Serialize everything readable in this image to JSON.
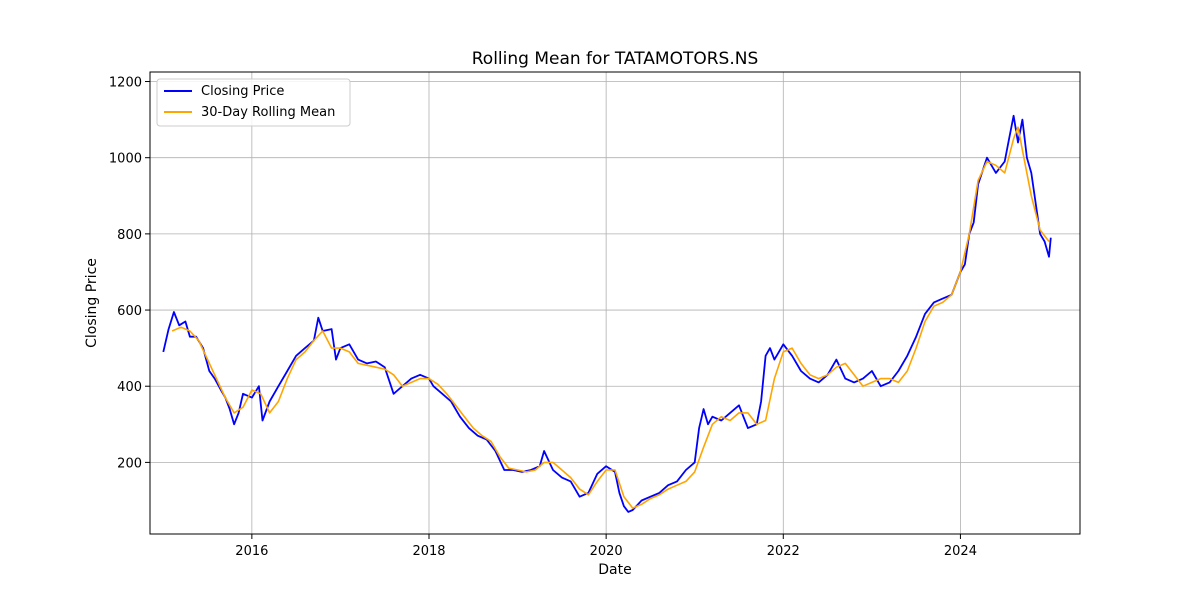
{
  "chart_data": {
    "type": "line",
    "title": "Rolling Mean for TATAMOTORS.NS",
    "xlabel": "Date",
    "ylabel": "Closing Price",
    "x_ticks": [
      "2016",
      "2018",
      "2020",
      "2022",
      "2024"
    ],
    "y_ticks": [
      200,
      400,
      600,
      800,
      1000,
      1200
    ],
    "xlim": [
      2014.85,
      2025.35
    ],
    "ylim": [
      12,
      1225
    ],
    "grid": true,
    "legend_position": "top-left",
    "series": [
      {
        "name": "Closing Price",
        "color": "#0000ff",
        "x": [
          2015.0,
          2015.06,
          2015.12,
          2015.18,
          2015.25,
          2015.3,
          2015.37,
          2015.45,
          2015.52,
          2015.58,
          2015.65,
          2015.7,
          2015.75,
          2015.8,
          2015.85,
          2015.9,
          2016.0,
          2016.08,
          2016.12,
          2016.2,
          2016.3,
          2016.4,
          2016.5,
          2016.6,
          2016.7,
          2016.75,
          2016.8,
          2016.9,
          2016.95,
          2017.0,
          2017.1,
          2017.2,
          2017.3,
          2017.4,
          2017.5,
          2017.6,
          2017.65,
          2017.7,
          2017.8,
          2017.9,
          2018.0,
          2018.05,
          2018.15,
          2018.25,
          2018.35,
          2018.45,
          2018.55,
          2018.65,
          2018.75,
          2018.85,
          2018.95,
          2019.05,
          2019.15,
          2019.25,
          2019.3,
          2019.4,
          2019.5,
          2019.6,
          2019.7,
          2019.8,
          2019.9,
          2020.0,
          2020.1,
          2020.15,
          2020.2,
          2020.25,
          2020.3,
          2020.4,
          2020.5,
          2020.6,
          2020.7,
          2020.8,
          2020.9,
          2021.0,
          2021.05,
          2021.1,
          2021.15,
          2021.2,
          2021.3,
          2021.4,
          2021.5,
          2021.55,
          2021.6,
          2021.7,
          2021.75,
          2021.8,
          2021.85,
          2021.9,
          2021.95,
          2022.0,
          2022.1,
          2022.2,
          2022.3,
          2022.4,
          2022.5,
          2022.6,
          2022.7,
          2022.8,
          2022.9,
          2023.0,
          2023.1,
          2023.2,
          2023.3,
          2023.4,
          2023.5,
          2023.6,
          2023.7,
          2023.8,
          2023.9,
          2024.0,
          2024.05,
          2024.1,
          2024.15,
          2024.2,
          2024.3,
          2024.4,
          2024.5,
          2024.55,
          2024.6,
          2024.65,
          2024.7,
          2024.75,
          2024.8,
          2024.85,
          2024.9,
          2024.95,
          2025.0,
          2025.02
        ],
        "y": [
          490,
          550,
          595,
          560,
          570,
          530,
          530,
          500,
          440,
          420,
          390,
          370,
          340,
          300,
          330,
          380,
          370,
          400,
          310,
          360,
          400,
          440,
          480,
          500,
          520,
          580,
          545,
          550,
          470,
          500,
          510,
          470,
          460,
          465,
          450,
          380,
          390,
          400,
          420,
          430,
          420,
          400,
          380,
          360,
          320,
          290,
          270,
          260,
          230,
          180,
          180,
          175,
          180,
          190,
          230,
          180,
          160,
          150,
          110,
          120,
          170,
          190,
          175,
          120,
          85,
          70,
          75,
          100,
          110,
          120,
          140,
          150,
          180,
          200,
          290,
          340,
          300,
          320,
          310,
          330,
          350,
          320,
          290,
          300,
          360,
          480,
          500,
          470,
          490,
          510,
          480,
          440,
          420,
          410,
          430,
          470,
          420,
          410,
          420,
          440,
          400,
          410,
          440,
          480,
          530,
          590,
          620,
          630,
          640,
          700,
          720,
          800,
          830,
          930,
          1000,
          960,
          990,
          1050,
          1110,
          1040,
          1100,
          1000,
          960,
          880,
          800,
          780,
          740,
          790
        ]
      },
      {
        "name": "30-Day Rolling Mean",
        "color": "#ffa500",
        "x": [
          2015.1,
          2015.2,
          2015.3,
          2015.4,
          2015.5,
          2015.6,
          2015.7,
          2015.8,
          2015.9,
          2016.0,
          2016.1,
          2016.2,
          2016.3,
          2016.4,
          2016.5,
          2016.6,
          2016.7,
          2016.8,
          2016.9,
          2017.0,
          2017.1,
          2017.2,
          2017.3,
          2017.4,
          2017.5,
          2017.6,
          2017.7,
          2017.8,
          2017.9,
          2018.0,
          2018.1,
          2018.2,
          2018.3,
          2018.4,
          2018.5,
          2018.6,
          2018.7,
          2018.8,
          2018.9,
          2019.0,
          2019.1,
          2019.2,
          2019.3,
          2019.4,
          2019.5,
          2019.6,
          2019.7,
          2019.8,
          2019.9,
          2020.0,
          2020.1,
          2020.2,
          2020.3,
          2020.4,
          2020.5,
          2020.6,
          2020.7,
          2020.8,
          2020.9,
          2021.0,
          2021.1,
          2021.2,
          2021.3,
          2021.4,
          2021.5,
          2021.6,
          2021.7,
          2021.8,
          2021.9,
          2022.0,
          2022.1,
          2022.2,
          2022.3,
          2022.4,
          2022.5,
          2022.6,
          2022.7,
          2022.8,
          2022.9,
          2023.0,
          2023.1,
          2023.2,
          2023.3,
          2023.4,
          2023.5,
          2023.6,
          2023.7,
          2023.8,
          2023.9,
          2024.0,
          2024.1,
          2024.2,
          2024.3,
          2024.4,
          2024.5,
          2024.6,
          2024.65,
          2024.7,
          2024.8,
          2024.9,
          2025.0
        ],
        "y": [
          545,
          555,
          545,
          520,
          470,
          420,
          370,
          330,
          345,
          390,
          380,
          330,
          360,
          420,
          470,
          490,
          520,
          545,
          500,
          500,
          490,
          460,
          455,
          450,
          445,
          430,
          400,
          410,
          420,
          420,
          405,
          380,
          350,
          320,
          290,
          270,
          255,
          215,
          185,
          180,
          175,
          180,
          200,
          200,
          180,
          160,
          130,
          115,
          150,
          180,
          180,
          110,
          80,
          90,
          105,
          115,
          130,
          140,
          150,
          175,
          240,
          300,
          320,
          310,
          330,
          330,
          300,
          310,
          420,
          490,
          500,
          460,
          430,
          420,
          430,
          450,
          460,
          430,
          400,
          410,
          420,
          420,
          410,
          440,
          500,
          570,
          610,
          620,
          640,
          700,
          800,
          940,
          990,
          980,
          960,
          1050,
          1080,
          1020,
          900,
          810,
          780
        ]
      }
    ]
  }
}
